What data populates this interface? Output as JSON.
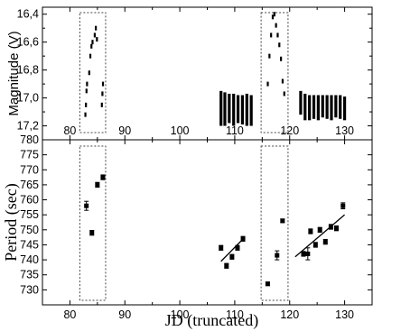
{
  "chart_data": [
    {
      "type": "scatter",
      "panel": "top",
      "xlabel": "",
      "ylabel": "Magnitude (V)",
      "xlim": [
        75,
        135
      ],
      "ylim": [
        17.3,
        16.35
      ],
      "y_inverted": true,
      "xticks": [
        "80",
        "90",
        "100",
        "110",
        "120",
        "130"
      ],
      "yticks": [
        "16,4",
        "16,6",
        "16,8",
        "17,0",
        "17,2"
      ],
      "series": [
        {
          "points": [
            [
              82.8,
              17.12
            ],
            [
              82.9,
              17.05
            ],
            [
              83.0,
              16.95
            ],
            [
              83.1,
              16.9
            ],
            [
              83.5,
              16.82
            ],
            [
              83.7,
              16.7
            ],
            [
              83.9,
              16.63
            ],
            [
              84.1,
              16.6
            ],
            [
              84.5,
              16.55
            ],
            [
              84.7,
              16.5
            ],
            [
              84.9,
              16.58
            ],
            [
              85.8,
              17.05
            ],
            [
              85.9,
              16.97
            ],
            [
              86.0,
              16.9
            ],
            [
              116.0,
              16.9
            ],
            [
              116.3,
              16.7
            ],
            [
              116.6,
              16.55
            ],
            [
              116.9,
              16.42
            ],
            [
              117.2,
              16.4
            ],
            [
              117.5,
              16.48
            ],
            [
              117.8,
              16.55
            ],
            [
              118.1,
              16.62
            ],
            [
              118.4,
              16.72
            ],
            [
              118.7,
              16.88
            ],
            [
              119.0,
              16.97
            ]
          ],
          "bands": [
            {
              "x": 107.5,
              "ymin": 16.95,
              "ymax": 17.2
            },
            {
              "x": 108.2,
              "ymin": 16.96,
              "ymax": 17.2
            },
            {
              "x": 109.0,
              "ymin": 16.97,
              "ymax": 17.18
            },
            {
              "x": 109.8,
              "ymin": 16.97,
              "ymax": 17.2
            },
            {
              "x": 110.6,
              "ymin": 16.98,
              "ymax": 17.18
            },
            {
              "x": 111.4,
              "ymin": 16.98,
              "ymax": 17.19
            },
            {
              "x": 112.2,
              "ymin": 16.97,
              "ymax": 17.2
            },
            {
              "x": 113.0,
              "ymin": 16.98,
              "ymax": 17.2
            },
            {
              "x": 122.0,
              "ymin": 16.95,
              "ymax": 17.12
            },
            {
              "x": 122.8,
              "ymin": 16.97,
              "ymax": 17.16
            },
            {
              "x": 123.6,
              "ymin": 16.98,
              "ymax": 17.16
            },
            {
              "x": 124.4,
              "ymin": 16.98,
              "ymax": 17.15
            },
            {
              "x": 125.2,
              "ymin": 16.98,
              "ymax": 17.16
            },
            {
              "x": 126.0,
              "ymin": 16.98,
              "ymax": 17.14
            },
            {
              "x": 126.8,
              "ymin": 16.98,
              "ymax": 17.15
            },
            {
              "x": 127.6,
              "ymin": 16.98,
              "ymax": 17.16
            },
            {
              "x": 128.4,
              "ymin": 16.98,
              "ymax": 17.14
            },
            {
              "x": 129.2,
              "ymin": 16.98,
              "ymax": 17.15
            },
            {
              "x": 130.0,
              "ymin": 16.99,
              "ymax": 17.16
            }
          ]
        }
      ],
      "highlight_boxes": [
        {
          "xmin": 81.8,
          "xmax": 86.5
        },
        {
          "xmin": 114.8,
          "xmax": 119.7
        }
      ]
    },
    {
      "type": "scatter",
      "panel": "bottom",
      "xlabel": "JD (truncated)",
      "ylabel": "Period (sec)",
      "xlim": [
        75,
        135
      ],
      "ylim": [
        725,
        780
      ],
      "xticks": [
        "80",
        "90",
        "100",
        "110",
        "120",
        "130"
      ],
      "yticks": [
        "730",
        "735",
        "740",
        "745",
        "750",
        "755",
        "760",
        "765",
        "770",
        "775",
        "780"
      ],
      "series": [
        {
          "points": [
            {
              "x": 83.0,
              "y": 758.0,
              "err": 1.5
            },
            {
              "x": 84.0,
              "y": 749.0,
              "err": 0.8
            },
            {
              "x": 85.0,
              "y": 765.0,
              "err": 0.8
            },
            {
              "x": 86.0,
              "y": 767.5,
              "err": 0.8
            },
            {
              "x": 107.5,
              "y": 744.0,
              "err": 0.8
            },
            {
              "x": 108.5,
              "y": 738.0,
              "err": 0.8
            },
            {
              "x": 109.5,
              "y": 741.0,
              "err": 0.8
            },
            {
              "x": 110.5,
              "y": 744.0,
              "err": 0.8
            },
            {
              "x": 111.5,
              "y": 747.0,
              "err": 0.8
            },
            {
              "x": 116.0,
              "y": 732.0,
              "err": 0.6
            },
            {
              "x": 117.7,
              "y": 741.5,
              "err": 1.5
            },
            {
              "x": 118.7,
              "y": 753.0,
              "err": 0.6
            },
            {
              "x": 122.5,
              "y": 742.0,
              "err": 0.8
            },
            {
              "x": 123.3,
              "y": 742.0,
              "err": 2.0
            },
            {
              "x": 123.8,
              "y": 749.5,
              "err": 0.8
            },
            {
              "x": 124.7,
              "y": 745.0,
              "err": 0.8
            },
            {
              "x": 125.5,
              "y": 750.0,
              "err": 0.8
            },
            {
              "x": 126.5,
              "y": 746.0,
              "err": 0.8
            },
            {
              "x": 127.5,
              "y": 751.0,
              "err": 0.8
            },
            {
              "x": 128.5,
              "y": 750.5,
              "err": 0.8
            },
            {
              "x": 129.7,
              "y": 758.0,
              "err": 1.0
            }
          ]
        }
      ],
      "fit_lines": [
        {
          "x": [
            107.5,
            111.8
          ],
          "y": [
            739.5,
            747.5
          ]
        },
        {
          "x": [
            121.0,
            130.0
          ],
          "y": [
            741.0,
            755.0
          ]
        }
      ],
      "highlight_boxes": [
        {
          "xmin": 81.8,
          "xmax": 86.5
        },
        {
          "xmin": 114.8,
          "xmax": 119.7
        }
      ]
    }
  ]
}
